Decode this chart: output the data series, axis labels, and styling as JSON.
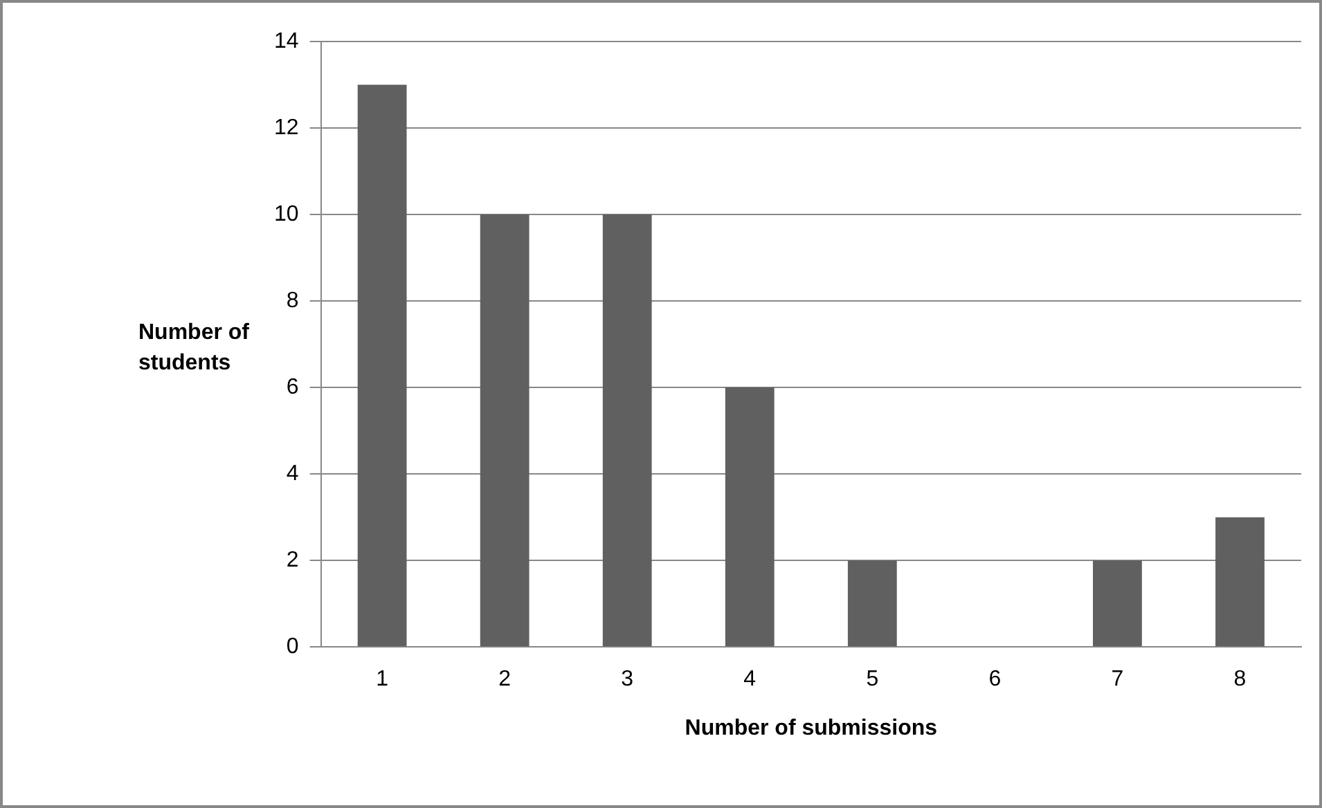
{
  "chart_data": {
    "type": "bar",
    "xlabel": "Number of submissions",
    "ylabel": "Number of students",
    "categories": [
      "1",
      "2",
      "3",
      "4",
      "5",
      "6",
      "7",
      "8"
    ],
    "values": [
      13,
      10,
      10,
      6,
      2,
      0,
      2,
      3
    ],
    "color": "#606060",
    "ylim": [
      0,
      14
    ],
    "yticks": [
      0,
      2,
      4,
      6,
      8,
      10,
      12,
      14
    ],
    "grid": "y",
    "legend": false
  }
}
